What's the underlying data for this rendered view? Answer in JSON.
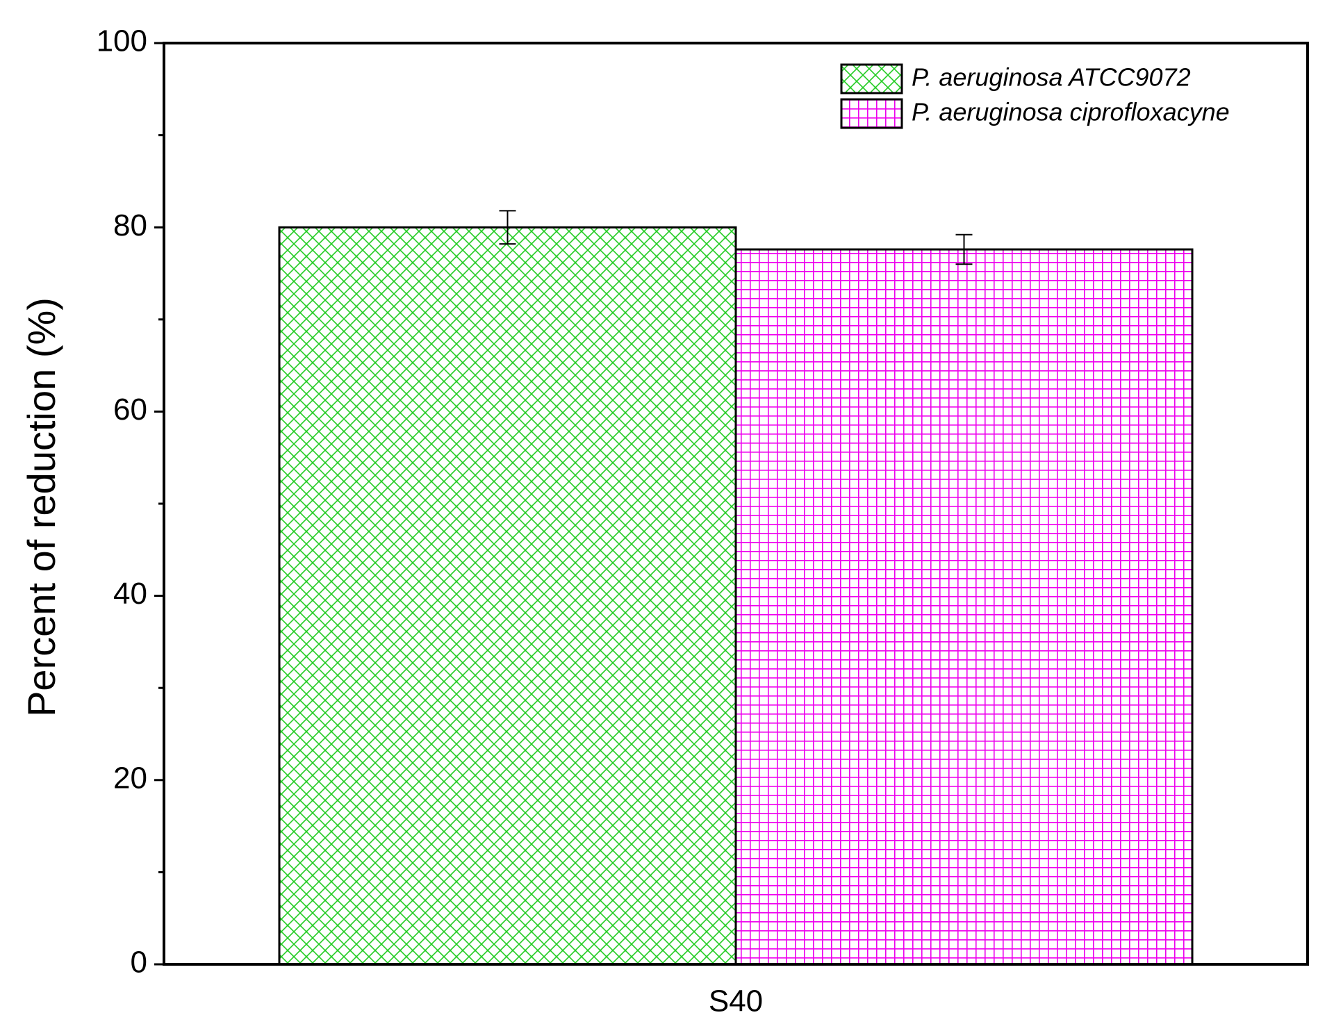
{
  "chart_data": {
    "type": "bar",
    "y_label": "Percent of reduction (%)",
    "categories": [
      "S40"
    ],
    "series": [
      {
        "name": "P. aeruginosa ATCC9072",
        "color": "#22cc22",
        "hatch": "diagonal-cross",
        "values": [
          80
        ],
        "errors": [
          1.8
        ]
      },
      {
        "name": "P. aeruginosa ciprofloxacyne",
        "color": "#ee00ee",
        "hatch": "grid",
        "values": [
          77.6
        ],
        "errors": [
          1.6
        ]
      }
    ],
    "ylim": [
      0,
      100
    ],
    "yticks": [
      0,
      20,
      40,
      60,
      80,
      100
    ],
    "yminorticks": [
      10,
      30,
      50,
      70,
      90
    ],
    "grid": false,
    "legend": "top-right"
  }
}
